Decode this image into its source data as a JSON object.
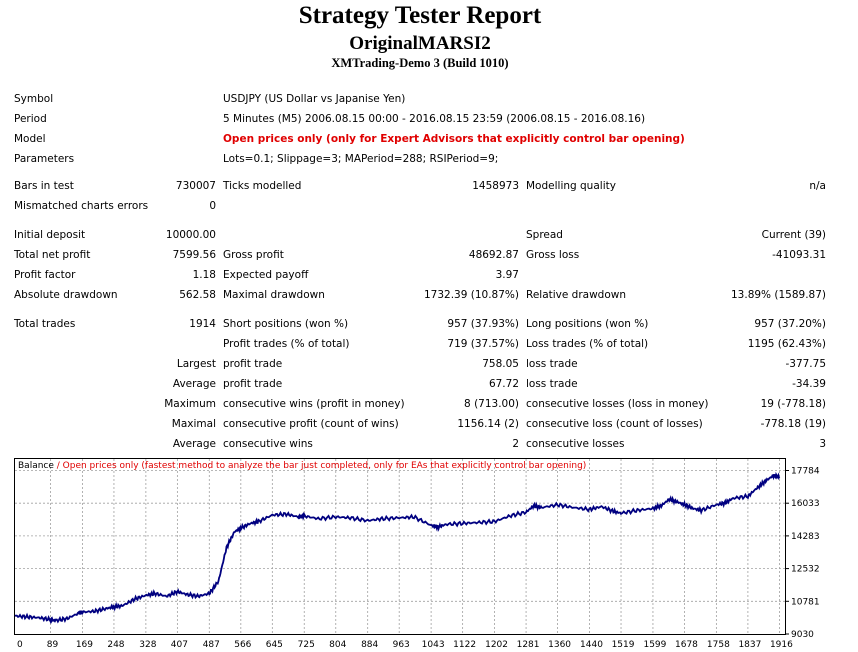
{
  "header": {
    "title": "Strategy Tester Report",
    "ea_name": "OriginalMARSI2",
    "server": "XMTrading-Demo 3 (Build 1010)"
  },
  "info": {
    "symbol_label": "Symbol",
    "symbol_value": "USDJPY (US Dollar vs Japanise Yen)",
    "period_label": "Period",
    "period_value": "5 Minutes (M5) 2006.08.15 00:00 - 2016.08.15 23:59 (2006.08.15 - 2016.08.16)",
    "model_label": "Model",
    "model_value": "Open prices only (only for Expert Advisors that explicitly control bar opening)",
    "params_label": "Parameters",
    "params_value": "Lots=0.1; Slippage=3; MAPeriod=288; RSIPeriod=9;"
  },
  "stats": {
    "bars_label": "Bars in test",
    "bars_value": "730007",
    "ticks_label": "Ticks modelled",
    "ticks_value": "1458973",
    "quality_label": "Modelling quality",
    "quality_value": "n/a",
    "mismatch_label": "Mismatched charts errors",
    "mismatch_value": "0",
    "deposit_label": "Initial deposit",
    "deposit_value": "10000.00",
    "spread_label": "Spread",
    "spread_value": "Current (39)",
    "netprofit_label": "Total net profit",
    "netprofit_value": "7599.56",
    "grossprofit_label": "Gross profit",
    "grossprofit_value": "48692.87",
    "grossloss_label": "Gross loss",
    "grossloss_value": "-41093.31",
    "pf_label": "Profit factor",
    "pf_value": "1.18",
    "payoff_label": "Expected payoff",
    "payoff_value": "3.97",
    "absdd_label": "Absolute drawdown",
    "absdd_value": "562.58",
    "maxdd_label": "Maximal drawdown",
    "maxdd_value": "1732.39 (10.87%)",
    "reldd_label": "Relative drawdown",
    "reldd_value": "13.89% (1589.87)",
    "trades_label": "Total trades",
    "trades_value": "1914",
    "short_label": "Short positions (won %)",
    "short_value": "957 (37.93%)",
    "long_label": "Long positions (won %)",
    "long_value": "957 (37.20%)",
    "profittrades_label": "Profit trades (% of total)",
    "profittrades_value": "719 (37.57%)",
    "losstrades_label": "Loss trades (% of total)",
    "losstrades_value": "1195 (62.43%)",
    "largest_label": "Largest",
    "largest_profit_label": "profit trade",
    "largest_profit_value": "758.05",
    "largest_loss_label": "loss trade",
    "largest_loss_value": "-377.75",
    "average_label": "Average",
    "average_profit_label": "profit trade",
    "average_profit_value": "67.72",
    "average_loss_label": "loss trade",
    "average_loss_value": "-34.39",
    "maximum_label": "Maximum",
    "max_wins_label": "consecutive wins (profit in money)",
    "max_wins_value": "8 (713.00)",
    "max_losses_label": "consecutive losses (loss in money)",
    "max_losses_value": "19 (-778.18)",
    "maximal_label": "Maximal",
    "maxl_profit_label": "consecutive profit (count of wins)",
    "maxl_profit_value": "1156.14 (2)",
    "maxl_loss_label": "consecutive loss (count of losses)",
    "maxl_loss_value": "-778.18 (19)",
    "avg2_label": "Average",
    "avg_wins_label": "consecutive wins",
    "avg_wins_value": "2",
    "avg_losses_label": "consecutive losses",
    "avg_losses_value": "3"
  },
  "chart_data": {
    "type": "line",
    "legend_series": "Balance",
    "legend_note": " / Open prices only (fastest method to analyze the bar just completed, only for EAs that explicitly control bar opening)",
    "x_ticks": [
      "0",
      "89",
      "169",
      "248",
      "328",
      "407",
      "487",
      "566",
      "645",
      "725",
      "804",
      "884",
      "963",
      "1043",
      "1122",
      "1202",
      "1281",
      "1360",
      "1440",
      "1519",
      "1599",
      "1678",
      "1758",
      "1837",
      "1916"
    ],
    "y_ticks": [
      "17784",
      "16033",
      "14283",
      "12532",
      "10781",
      "9030"
    ],
    "x_range": [
      0,
      1930
    ],
    "y_range": [
      9030,
      18400
    ],
    "grid": true,
    "series": [
      {
        "color": "#000080",
        "x": [
          0,
          30,
          60,
          89,
          100,
          130,
          160,
          169,
          200,
          230,
          248,
          270,
          300,
          328,
          350,
          380,
          407,
          430,
          460,
          487,
          510,
          530,
          550,
          566,
          590,
          610,
          645,
          680,
          710,
          725,
          760,
          804,
          840,
          884,
          920,
          963,
          1000,
          1043,
          1060,
          1080,
          1122,
          1160,
          1202,
          1240,
          1281,
          1300,
          1320,
          1360,
          1400,
          1440,
          1470,
          1500,
          1519,
          1560,
          1599,
          1620,
          1640,
          1660,
          1678,
          1700,
          1720,
          1758,
          1780,
          1800,
          1837,
          1860,
          1880,
          1900,
          1916
        ],
        "y": [
          10000,
          9950,
          9900,
          9800,
          9750,
          9850,
          10150,
          10200,
          10250,
          10400,
          10480,
          10550,
          10900,
          11100,
          11200,
          11050,
          11300,
          11150,
          11050,
          11200,
          11850,
          13650,
          14500,
          14700,
          14950,
          15050,
          15400,
          15450,
          15300,
          15350,
          15200,
          15300,
          15250,
          15100,
          15200,
          15250,
          15300,
          14850,
          14750,
          14900,
          14950,
          15000,
          15050,
          15350,
          15550,
          15900,
          15800,
          15950,
          15800,
          15700,
          15850,
          15600,
          15500,
          15650,
          15750,
          15900,
          16250,
          16100,
          15950,
          15750,
          15650,
          15950,
          16050,
          16300,
          16400,
          16850,
          17200,
          17500,
          17450
        ]
      }
    ]
  }
}
